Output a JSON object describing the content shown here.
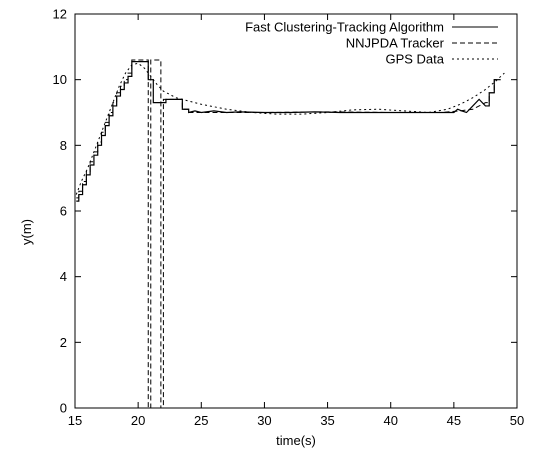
{
  "chart_data": {
    "type": "line",
    "title": "",
    "xlabel": "time(s)",
    "ylabel": "y(m)",
    "xlim": [
      15,
      50
    ],
    "ylim": [
      0,
      12
    ],
    "xticks": [
      15,
      20,
      25,
      30,
      35,
      40,
      45,
      50
    ],
    "yticks": [
      0,
      2,
      4,
      6,
      8,
      10,
      12
    ],
    "grid": false,
    "legend_position": "top-right",
    "series": [
      {
        "name": "Fast Clustering-Tracking Algorithm",
        "style": "solid",
        "color": "#000000",
        "x": [
          15.1,
          15.3,
          15.3,
          15.6,
          15.6,
          15.9,
          15.9,
          16.2,
          16.2,
          16.5,
          16.5,
          16.8,
          16.8,
          17.1,
          17.1,
          17.4,
          17.4,
          17.7,
          17.7,
          18.0,
          18.0,
          18.3,
          18.3,
          18.6,
          18.6,
          18.9,
          18.9,
          19.2,
          19.2,
          19.5,
          19.5,
          20.8,
          20.8,
          21.2,
          21.2,
          22.2,
          22.2,
          23.5,
          23.5,
          24.0,
          24.0,
          24.5,
          25.0,
          26.0,
          27.0,
          28.0,
          30.0,
          32.0,
          34.0,
          36.0,
          38.0,
          40.0,
          42.0,
          44.0,
          45.0,
          45.3,
          45.6,
          46.0,
          46.5,
          47.0,
          47.5,
          47.8,
          47.8,
          48.2,
          48.2,
          48.7
        ],
        "y": [
          6.3,
          6.3,
          6.5,
          6.5,
          6.8,
          6.8,
          7.1,
          7.1,
          7.4,
          7.4,
          7.7,
          7.7,
          8.0,
          8.0,
          8.3,
          8.3,
          8.6,
          8.6,
          8.9,
          8.9,
          9.2,
          9.2,
          9.5,
          9.5,
          9.7,
          9.7,
          9.9,
          9.9,
          10.1,
          10.1,
          10.55,
          10.55,
          10.0,
          10.0,
          9.3,
          9.3,
          9.4,
          9.4,
          9.1,
          9.1,
          9.0,
          9.05,
          9.0,
          9.05,
          9.0,
          9.02,
          9.0,
          9.0,
          9.02,
          9.0,
          9.0,
          9.0,
          9.0,
          9.0,
          9.0,
          9.1,
          9.05,
          9.0,
          9.2,
          9.4,
          9.2,
          9.2,
          9.6,
          9.6,
          10.0,
          10.0
        ]
      },
      {
        "name": "NNJPDA Tracker",
        "style": "dashed",
        "color": "#000000",
        "x": [
          15.1,
          15.3,
          15.3,
          15.6,
          15.6,
          15.9,
          15.9,
          16.2,
          16.2,
          16.5,
          16.5,
          16.8,
          16.8,
          17.1,
          17.1,
          17.4,
          17.4,
          17.7,
          17.7,
          18.0,
          18.0,
          18.3,
          18.3,
          18.6,
          18.6,
          18.9,
          18.9,
          19.2,
          19.2,
          19.5,
          19.5,
          20.8,
          20.8,
          21.0,
          21.0,
          21.8,
          21.8,
          22.0,
          22.0,
          23.5,
          23.5,
          24.0,
          24.0,
          26.0,
          30.0,
          35.0,
          40.0,
          44.0,
          45.5,
          46.5,
          47.5,
          47.8,
          47.8,
          48.2,
          48.2,
          48.7
        ],
        "y": [
          6.4,
          6.4,
          6.6,
          6.6,
          6.9,
          6.9,
          7.2,
          7.2,
          7.5,
          7.5,
          7.8,
          7.8,
          8.1,
          8.1,
          8.4,
          8.4,
          8.7,
          8.7,
          9.0,
          9.0,
          9.3,
          9.3,
          9.6,
          9.6,
          9.8,
          9.8,
          10.0,
          10.0,
          10.2,
          10.2,
          10.6,
          10.6,
          0.0,
          0.0,
          10.6,
          10.6,
          0.0,
          0.0,
          9.4,
          9.4,
          9.1,
          9.1,
          9.0,
          9.0,
          9.0,
          9.02,
          9.0,
          9.0,
          9.05,
          9.1,
          9.3,
          9.3,
          9.6,
          9.6,
          10.0,
          10.0
        ]
      },
      {
        "name": "GPS Data",
        "style": "dotted",
        "color": "#000000",
        "x": [
          15.1,
          15.5,
          16.0,
          16.5,
          17.0,
          17.5,
          18.0,
          18.5,
          19.0,
          19.5,
          20.0,
          20.5,
          21.0,
          21.5,
          22.0,
          23.0,
          24.0,
          25.0,
          27.0,
          29.0,
          31.0,
          33.0,
          35.0,
          37.0,
          39.0,
          41.0,
          43.0,
          44.5,
          45.5,
          46.5,
          47.5,
          48.3,
          49.0
        ],
        "y": [
          6.5,
          6.9,
          7.3,
          7.8,
          8.3,
          8.8,
          9.3,
          9.8,
          10.2,
          10.45,
          10.5,
          10.35,
          10.1,
          9.85,
          9.65,
          9.45,
          9.35,
          9.25,
          9.1,
          9.0,
          8.95,
          8.95,
          9.0,
          9.08,
          9.1,
          9.05,
          9.0,
          9.1,
          9.25,
          9.45,
          9.7,
          9.95,
          10.2
        ]
      }
    ]
  }
}
